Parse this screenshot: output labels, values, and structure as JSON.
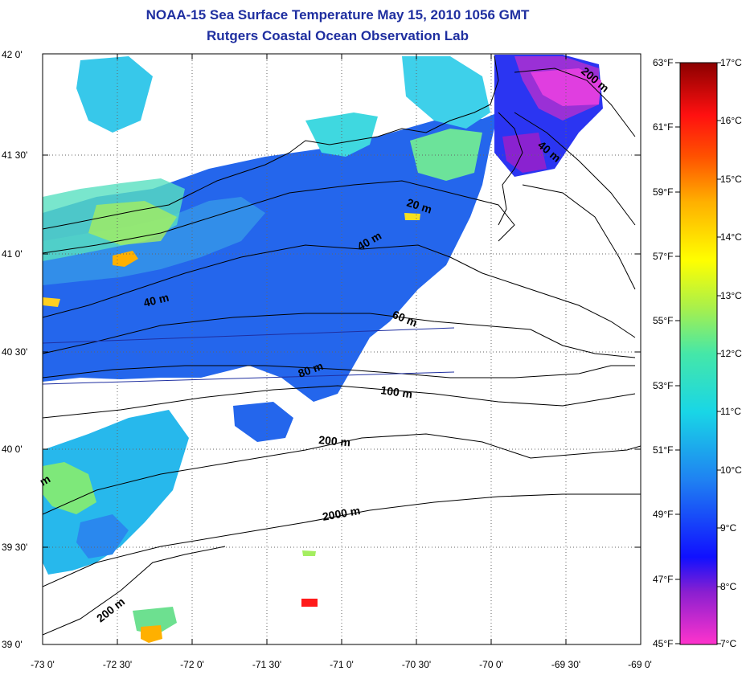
{
  "title": "NOAA-15 Sea Surface Temperature May 15, 2010 1056 GMT",
  "subtitle": "Rutgers Coastal Ocean Observation Lab",
  "latitude_labels": [
    "42 0'",
    "41 30'",
    "41 0'",
    "40 30'",
    "40 0'",
    "39 30'",
    "39 0'"
  ],
  "longitude_labels": [
    "-73 0'",
    "-72 30'",
    "-72 0'",
    "-71 30'",
    "-71 0'",
    "-70 30'",
    "-70 0'",
    "-69 30'",
    "-69 0'"
  ],
  "fahrenheit_labels": [
    "63°F",
    "61°F",
    "59°F",
    "57°F",
    "55°F",
    "53°F",
    "51°F",
    "49°F",
    "47°F",
    "45°F"
  ],
  "celsius_labels": [
    "17°C",
    "16°C",
    "15°C",
    "14°C",
    "13°C",
    "12°C",
    "11°C",
    "10°C",
    "9°C",
    "8°C",
    "7°C"
  ],
  "depth_labels": [
    "20 m",
    "40 m",
    "40 m",
    "40 m",
    "60 m",
    "80 m",
    "100 m",
    "200 m",
    "2000 m",
    "200 m",
    "200 m",
    "m"
  ],
  "colors": {
    "title": "#1f2fa0",
    "warm": "#8b0000",
    "cold": "#ff33cc",
    "ocean_main": "#2a6bea"
  }
}
